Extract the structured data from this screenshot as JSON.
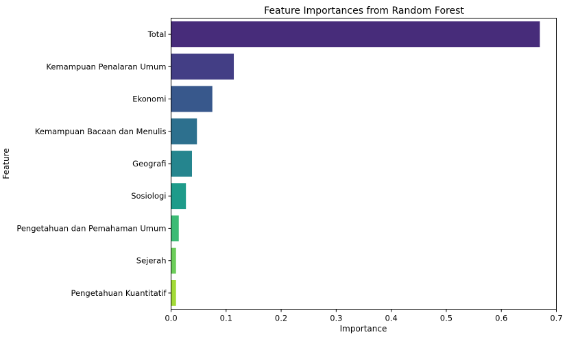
{
  "chart_data": {
    "type": "bar",
    "orientation": "horizontal",
    "title": "Feature Importances from Random Forest",
    "xlabel": "Importance",
    "ylabel": "Feature",
    "xlim": [
      0,
      0.7
    ],
    "xticks": [
      "0.0",
      "0.1",
      "0.2",
      "0.3",
      "0.4",
      "0.5",
      "0.6",
      "0.7"
    ],
    "grid": false,
    "categories": [
      "Total",
      "Kemampuan Penalaran Umum",
      "Ekonomi",
      "Kemampuan Bacaan dan Menulis",
      "Geografi",
      "Sosiologi",
      "Pengetahuan dan Pemahaman Umum",
      "Sejerah",
      "Pengetahuan Kuantitatif"
    ],
    "values": [
      0.67,
      0.114,
      0.075,
      0.047,
      0.038,
      0.027,
      0.014,
      0.009,
      0.009
    ],
    "colors": [
      "#472c7a",
      "#433e85",
      "#38588c",
      "#2d708e",
      "#25858e",
      "#1e9b8a",
      "#3cbb75",
      "#6ccd5a",
      "#a2da37"
    ]
  }
}
